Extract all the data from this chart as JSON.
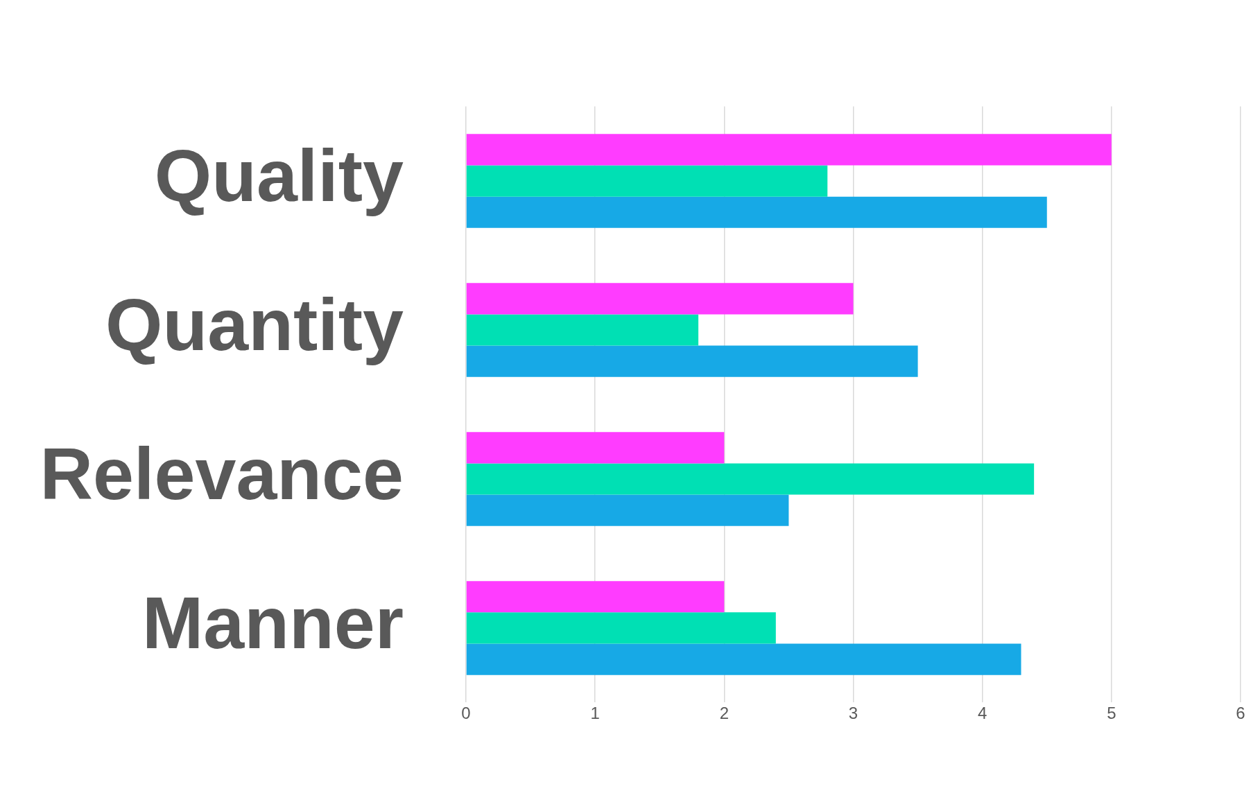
{
  "chart_data": {
    "type": "bar",
    "orientation": "horizontal",
    "categories": [
      "Quality",
      "Quantity",
      "Relevance",
      "Manner"
    ],
    "series": [
      {
        "color": "#ff3cff",
        "values": [
          5.0,
          3.0,
          2.0,
          2.0
        ]
      },
      {
        "color": "#00e0b4",
        "values": [
          2.8,
          1.8,
          4.4,
          2.4
        ]
      },
      {
        "color": "#17a9e6",
        "values": [
          4.5,
          3.5,
          2.5,
          4.3
        ]
      }
    ],
    "xlim": [
      0,
      6
    ],
    "xticks": [
      0,
      1,
      2,
      3,
      4,
      5,
      6
    ],
    "grid": "x",
    "legend": false
  }
}
